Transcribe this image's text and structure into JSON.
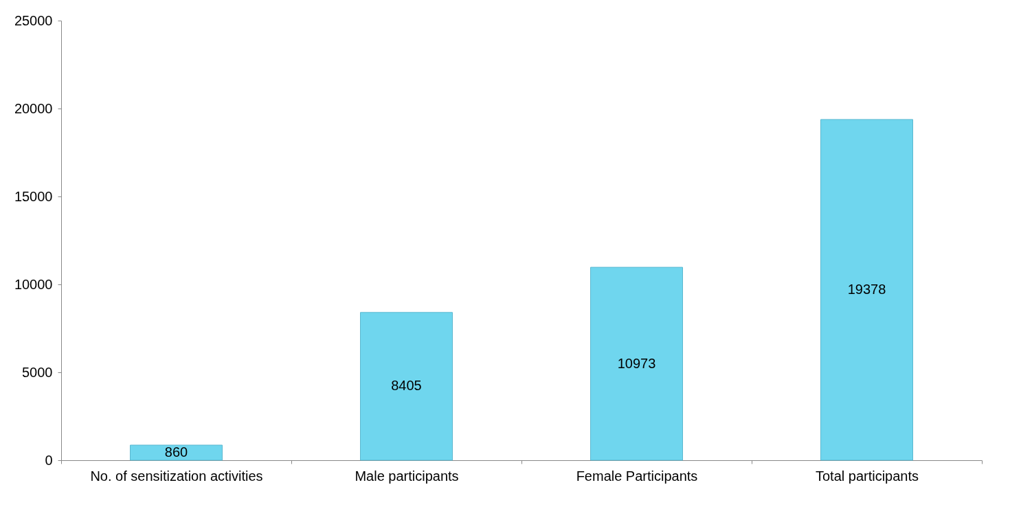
{
  "chart_data": {
    "type": "bar",
    "categories": [
      "No. of sensitization activities",
      "Male participants",
      "Female Participants",
      "Total participants"
    ],
    "values": [
      860,
      8405,
      10973,
      19378
    ],
    "color": "#6fd6ee",
    "ylim": [
      0,
      25000
    ],
    "yticks": [
      0,
      5000,
      10000,
      15000,
      20000,
      25000
    ],
    "grid": false,
    "data_labels": true
  }
}
